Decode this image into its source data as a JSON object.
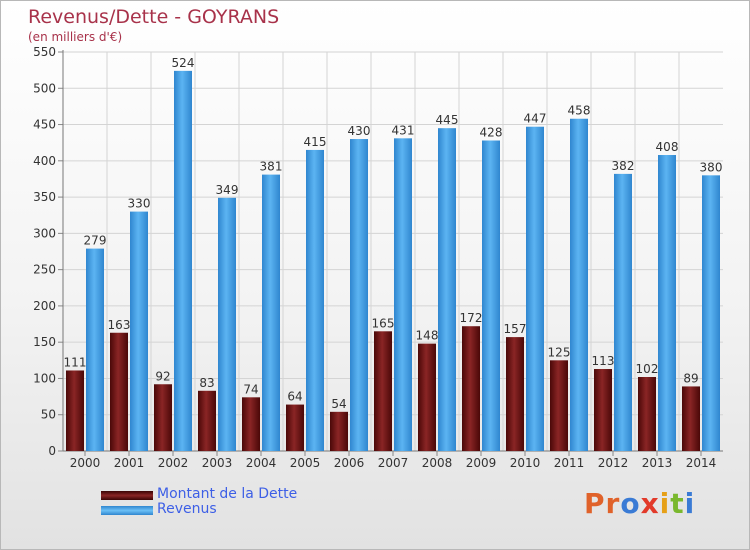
{
  "title": "Revenus/Dette - GOYRANS",
  "subtitle": "(en milliers d'€)",
  "logo": {
    "text": "Proxiti",
    "letters": [
      "P",
      "r",
      "o",
      "x",
      "i",
      "t",
      "i"
    ],
    "colors": [
      "#e0622a",
      "#e0622a",
      "#3a7bd5",
      "#e23a2a",
      "#e6a017",
      "#7ab82e",
      "#3a7bd5"
    ]
  },
  "legend": [
    {
      "label": "Montant de la Dette",
      "color": "#6e1414"
    },
    {
      "label": "Revenus",
      "color": "#4aa3e8"
    }
  ],
  "chart_data": {
    "type": "bar",
    "title": "Revenus/Dette - GOYRANS",
    "subtitle": "(en milliers d'€)",
    "categories": [
      "2000",
      "2001",
      "2002",
      "2003",
      "2004",
      "2005",
      "2006",
      "2007",
      "2008",
      "2009",
      "2010",
      "2011",
      "2012",
      "2013",
      "2014"
    ],
    "series": [
      {
        "name": "Montant de la Dette",
        "color": "#6e1414",
        "values": [
          111,
          163,
          92,
          83,
          74,
          64,
          54,
          165,
          148,
          172,
          157,
          125,
          113,
          102,
          89
        ]
      },
      {
        "name": "Revenus",
        "color": "#4aa3e8",
        "values": [
          279,
          330,
          524,
          349,
          381,
          415,
          430,
          431,
          445,
          428,
          447,
          458,
          382,
          408,
          380
        ]
      }
    ],
    "ylim": [
      0,
      550
    ],
    "yticks": [
      0,
      50,
      100,
      150,
      200,
      250,
      300,
      350,
      400,
      450,
      500,
      550
    ],
    "grid": true,
    "legend_position": "bottom"
  }
}
